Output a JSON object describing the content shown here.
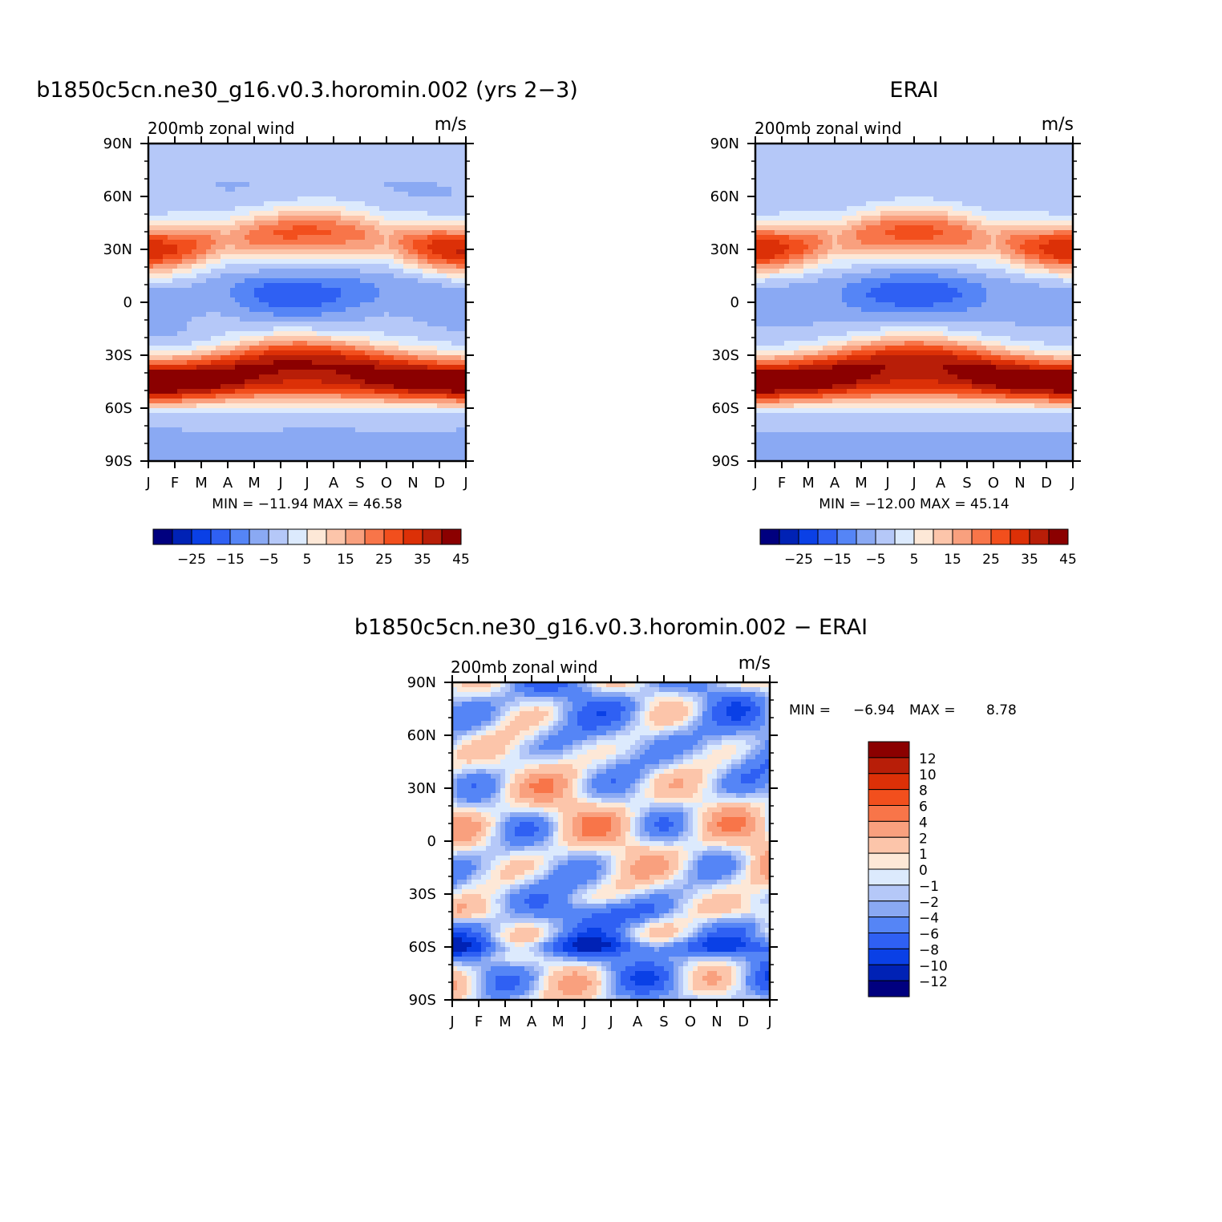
{
  "chart_data": [
    {
      "type": "heatmap",
      "title": "b1850c5cn.ne30_g16.v0.3.horomin.002 (yrs 2−3)",
      "subtitle_left": "200mb  zonal  wind",
      "subtitle_right": "m/s",
      "x_ticks": [
        "J",
        "F",
        "M",
        "A",
        "M",
        "J",
        "J",
        "A",
        "S",
        "O",
        "N",
        "D",
        "J"
      ],
      "y_ticks": [
        "90N",
        "60N",
        "30N",
        "0",
        "30S",
        "60S",
        "90S"
      ],
      "stats": "MIN = −11.94  MAX =   46.58",
      "min": -11.94,
      "max": 46.58,
      "colorbar_labels": [
        "−25",
        "−15",
        "−5",
        "5",
        "15",
        "25",
        "35",
        "45"
      ],
      "colorbar_colors": [
        "#00007f",
        "#0022b5",
        "#0a40e6",
        "#2f60f3",
        "#5585f6",
        "#8aa9f3",
        "#b5c8f8",
        "#dceafd",
        "#fde8d7",
        "#fcc5aa",
        "#f9a07e",
        "#f87549",
        "#f24f1d",
        "#dc3007",
        "#b81e08",
        "#8b0000"
      ],
      "levels": [
        -30,
        -25,
        -20,
        -15,
        -10,
        -5,
        0,
        5,
        10,
        15,
        20,
        25,
        30,
        35,
        40,
        45
      ],
      "contours": [
        {
          "base": 0,
          "shapes": [
            [
              1,
              30,
              2.5,
              22
            ],
            [
              2,
              28,
              3.5,
              14
            ],
            [
              1.9,
              29,
              0.8,
              7
            ],
            [
              10.5,
              35,
              2.5,
              15
            ],
            [
              11,
              32,
              1.2,
              8
            ],
            [
              6.5,
              -28,
              6,
              18
            ],
            [
              6.5,
              -28,
              3.5,
              12
            ],
            [
              6.8,
              -28,
              1.5,
              6
            ],
            [
              1,
              -46,
              2.5,
              13
            ],
            [
              11.5,
              -46,
              1.5,
              8
            ]
          ]
        },
        {
          "base": 0,
          "shapes": [
            [
              6,
              5,
              3.5,
              18
            ],
            [
              6,
              5,
              2,
              11
            ]
          ]
        }
      ]
    },
    {
      "type": "heatmap",
      "title": "ERAI",
      "subtitle_left": "200mb  zonal  wind",
      "subtitle_right": "m/s",
      "x_ticks": [
        "J",
        "F",
        "M",
        "A",
        "M",
        "J",
        "J",
        "A",
        "S",
        "O",
        "N",
        "D",
        "J"
      ],
      "y_ticks": [
        "90N",
        "60N",
        "30N",
        "0",
        "30S",
        "60S",
        "90S"
      ],
      "stats": "MIN = −12.00  MAX =   45.14",
      "min": -12.0,
      "max": 45.14,
      "colorbar_labels": [
        "−25",
        "−15",
        "−5",
        "5",
        "15",
        "25",
        "35",
        "45"
      ],
      "colorbar_colors": [
        "#00007f",
        "#0022b5",
        "#0a40e6",
        "#2f60f3",
        "#5585f6",
        "#8aa9f3",
        "#b5c8f8",
        "#dceafd",
        "#fde8d7",
        "#fcc5aa",
        "#f9a07e",
        "#f87549",
        "#f24f1d",
        "#dc3007",
        "#b81e08",
        "#8b0000"
      ],
      "levels": [
        -30,
        -25,
        -20,
        -15,
        -10,
        -5,
        0,
        5,
        10,
        15,
        20,
        25,
        30,
        35,
        40,
        45
      ],
      "contours": [
        {
          "base": 0,
          "shapes": [
            [
              1,
              30,
              2.5,
              20
            ],
            [
              1.5,
              29,
              1.2,
              9
            ],
            [
              11,
              31,
              2,
              14
            ],
            [
              11.5,
              31,
              1,
              7
            ],
            [
              6.5,
              -28,
              6,
              18
            ],
            [
              6.5,
              -28,
              2.5,
              10
            ],
            [
              6.5,
              -30,
              1.2,
              5
            ],
            [
              1.5,
              -45,
              2.5,
              12
            ]
          ]
        },
        {
          "base": 0,
          "shapes": [
            [
              6.5,
              5,
              3.5,
              18
            ],
            [
              6.8,
              5,
              1.8,
              9
            ]
          ]
        }
      ]
    },
    {
      "type": "heatmap",
      "title": "b1850c5cn.ne30_g16.v0.3.horomin.002  −  ERAI",
      "subtitle_left": "200mb  zonal  wind",
      "subtitle_right": "m/s",
      "x_ticks": [
        "J",
        "F",
        "M",
        "A",
        "M",
        "J",
        "J",
        "A",
        "S",
        "O",
        "N",
        "D",
        "J"
      ],
      "y_ticks": [
        "90N",
        "60N",
        "30N",
        "0",
        "30S",
        "60S",
        "90S"
      ],
      "stats_prefix": "MIN =",
      "stats_min": "−6.94",
      "stats_mid": "MAX =",
      "stats_max": "8.78",
      "min": -6.94,
      "max": 8.78,
      "colorbar_labels": [
        "12",
        "10",
        "8",
        "6",
        "4",
        "2",
        "1",
        "0",
        "−1",
        "−2",
        "−4",
        "−6",
        "−8",
        "−10",
        "−12"
      ],
      "colorbar_colors": [
        "#8b0000",
        "#b81e08",
        "#dc3007",
        "#f24f1d",
        "#f87549",
        "#f9a07e",
        "#fcc5aa",
        "#fde8d7",
        "#dceafd",
        "#b5c8f8",
        "#8aa9f3",
        "#5585f6",
        "#2f60f3",
        "#0a40e6",
        "#0022b5",
        "#00007f"
      ]
    }
  ]
}
